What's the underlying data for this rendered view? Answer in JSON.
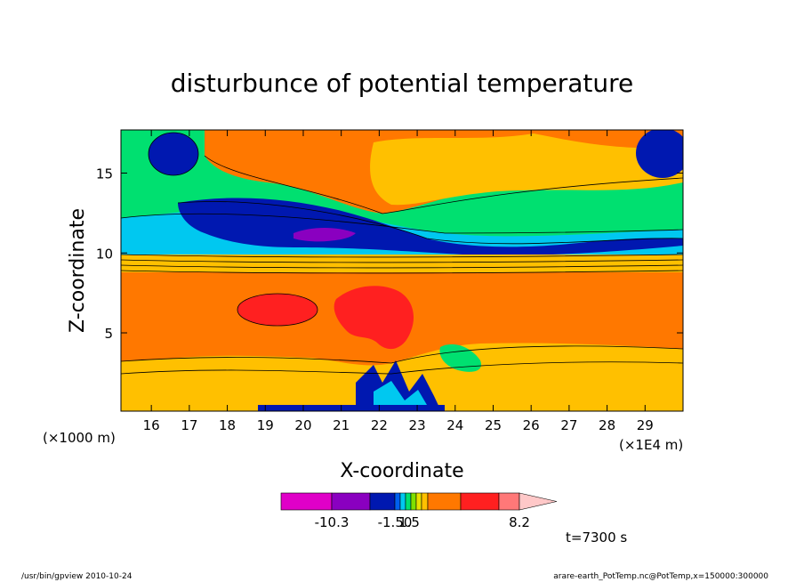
{
  "chart_data": {
    "type": "heatmap",
    "title": "disturbunce of potential temperature",
    "xlabel": "X-coordinate",
    "ylabel": "Z-coordinate",
    "x_unit_left": "(×1000 m)",
    "x_unit_right": "(×1E4 m)",
    "x_ticks": [
      "16",
      "17",
      "18",
      "19",
      "20",
      "21",
      "22",
      "23",
      "24",
      "25",
      "26",
      "27",
      "28",
      "29"
    ],
    "x_range": [
      15.2,
      30.0
    ],
    "y_ticks": [
      "5",
      "10",
      "15"
    ],
    "y_range": [
      0.1,
      17.7
    ],
    "colorbar": {
      "colors": [
        "#e000c8",
        "#8a00c0",
        "#0018b0",
        "#0060f0",
        "#00c8f0",
        "#00e070",
        "#80e000",
        "#e8e000",
        "#ffc000",
        "#ff7800",
        "#ff2020",
        "#ff7878",
        "#ffc8c8"
      ],
      "tick_labels": [
        "-10.3",
        "-1.50",
        "1.5",
        "8.2"
      ]
    },
    "time_label": "t=7300 s"
  },
  "footer": {
    "left": "/usr/bin/gpview   2010-10-24",
    "right": "arare-earth_PotTemp.nc@PotTemp,x=150000:300000"
  }
}
